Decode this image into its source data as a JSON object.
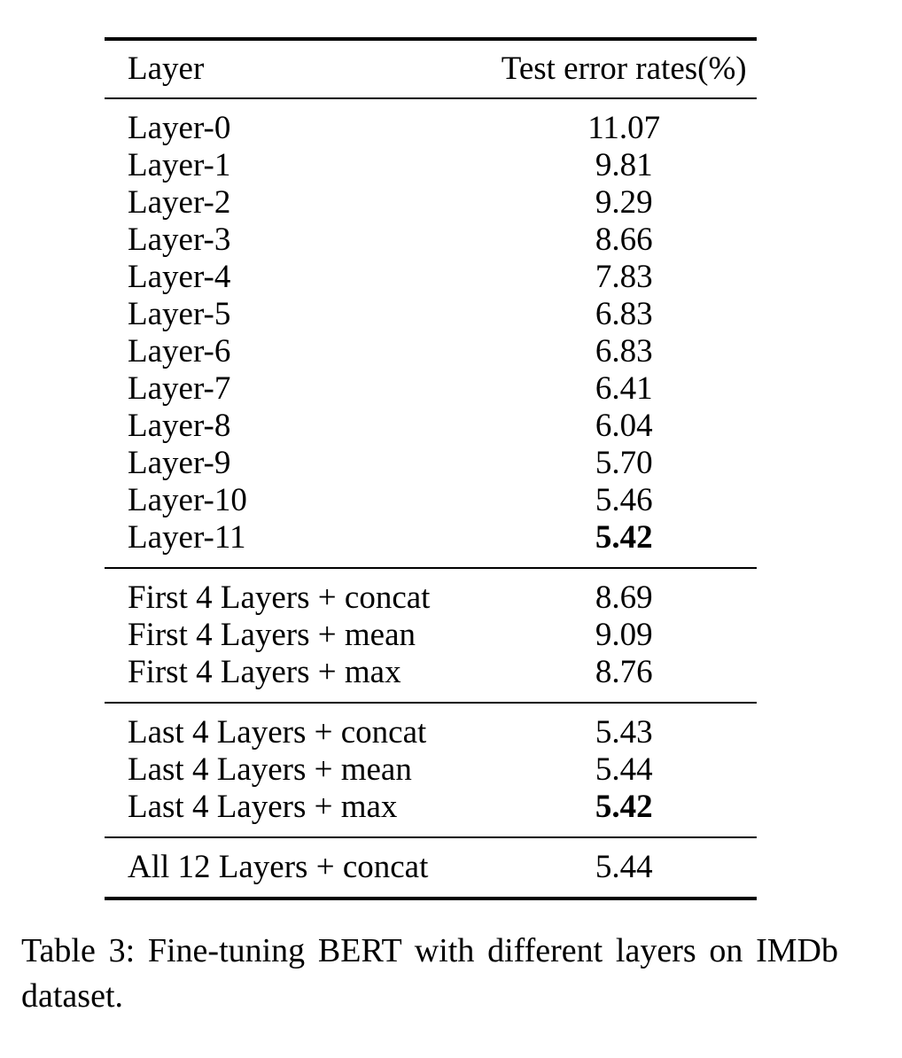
{
  "table": {
    "header": {
      "layer": "Layer",
      "error": "Test error rates(%)"
    },
    "groups": [
      {
        "rows": [
          {
            "label": "Layer-0",
            "value": "11.07",
            "bold": false
          },
          {
            "label": "Layer-1",
            "value": "9.81",
            "bold": false
          },
          {
            "label": "Layer-2",
            "value": "9.29",
            "bold": false
          },
          {
            "label": "Layer-3",
            "value": "8.66",
            "bold": false
          },
          {
            "label": "Layer-4",
            "value": "7.83",
            "bold": false
          },
          {
            "label": "Layer-5",
            "value": "6.83",
            "bold": false
          },
          {
            "label": "Layer-6",
            "value": "6.83",
            "bold": false
          },
          {
            "label": "Layer-7",
            "value": "6.41",
            "bold": false
          },
          {
            "label": "Layer-8",
            "value": "6.04",
            "bold": false
          },
          {
            "label": "Layer-9",
            "value": "5.70",
            "bold": false
          },
          {
            "label": "Layer-10",
            "value": "5.46",
            "bold": false
          },
          {
            "label": "Layer-11",
            "value": "5.42",
            "bold": true
          }
        ]
      },
      {
        "rows": [
          {
            "label": "First 4 Layers + concat",
            "value": "8.69",
            "bold": false
          },
          {
            "label": "First 4 Layers + mean",
            "value": "9.09",
            "bold": false
          },
          {
            "label": "First 4 Layers + max",
            "value": "8.76",
            "bold": false
          }
        ]
      },
      {
        "rows": [
          {
            "label": "Last 4 Layers + concat",
            "value": "5.43",
            "bold": false
          },
          {
            "label": "Last 4 Layers + mean",
            "value": "5.44",
            "bold": false
          },
          {
            "label": "Last 4 Layers + max",
            "value": "5.42",
            "bold": true
          }
        ]
      },
      {
        "rows": [
          {
            "label": "All 12 Layers + concat",
            "value": "5.44",
            "bold": false
          }
        ]
      }
    ]
  },
  "caption": "Table 3: Fine-tuning BERT with different layers on IMDb dataset."
}
